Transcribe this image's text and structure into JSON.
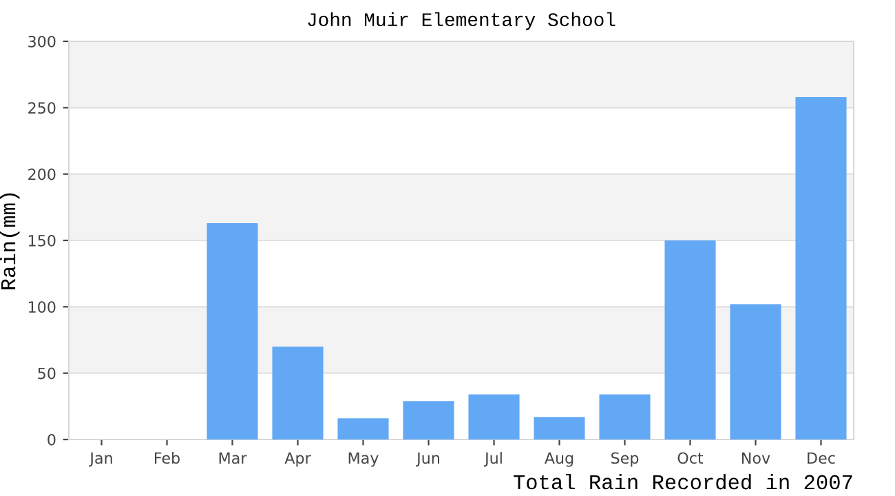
{
  "chart_data": {
    "type": "bar",
    "title": "John Muir Elementary School",
    "xlabel": "Total Rain Recorded in 2007",
    "ylabel": "Rain(mm)",
    "categories": [
      "Jan",
      "Feb",
      "Mar",
      "Apr",
      "May",
      "Jun",
      "Jul",
      "Aug",
      "Sep",
      "Oct",
      "Nov",
      "Dec"
    ],
    "values": [
      0,
      0,
      163,
      70,
      16,
      29,
      34,
      17,
      34,
      150,
      102,
      258
    ],
    "color": "#63a8f5",
    "ylim": [
      0,
      300
    ],
    "yticks": [
      0,
      50,
      100,
      150,
      200,
      250,
      300
    ],
    "grid": "y",
    "bands": [
      {
        "axis": "y",
        "from": 50,
        "to": 100,
        "color": "#f3f3f3"
      },
      {
        "axis": "y",
        "from": 150,
        "to": 200,
        "color": "#f3f3f3"
      },
      {
        "axis": "y",
        "from": 250,
        "to": 300,
        "color": "#f3f3f3"
      }
    ]
  }
}
